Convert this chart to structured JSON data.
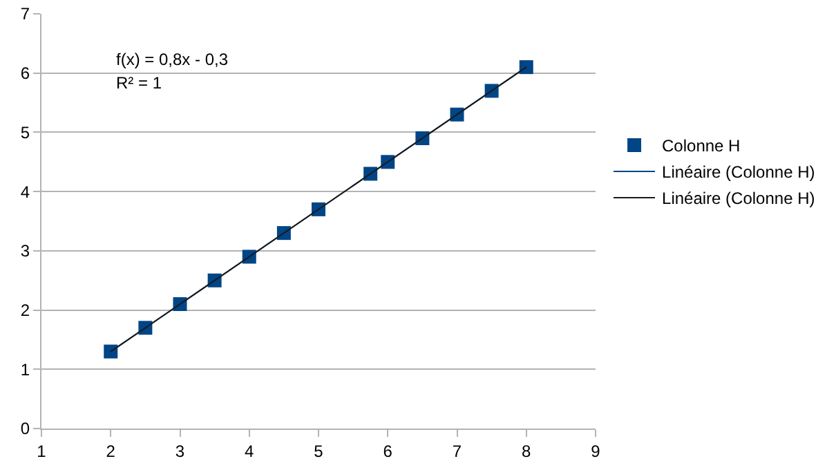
{
  "chart_data": {
    "type": "scatter",
    "xlim": [
      1,
      9
    ],
    "ylim": [
      0,
      7
    ],
    "xticks": [
      1,
      2,
      3,
      4,
      5,
      6,
      7,
      8,
      9
    ],
    "yticks": [
      0,
      1,
      2,
      3,
      4,
      5,
      6,
      7
    ],
    "grid": "y",
    "legend": "right",
    "annotations": [
      "f(x) = 0,8x - 0,3",
      "R² = 1"
    ],
    "series": [
      {
        "name": "Colonne H",
        "marker": "square",
        "color": "#004586",
        "x": [
          2,
          2.5,
          3,
          3.5,
          4,
          4.5,
          5,
          5.75,
          6,
          6.5,
          7,
          7.5,
          8
        ],
        "values": [
          1.3,
          1.7,
          2.1,
          2.5,
          2.9,
          3.3,
          3.7,
          4.3,
          4.5,
          4.9,
          5.3,
          5.7,
          6.1
        ]
      },
      {
        "name": "Linéaire (Colonne H)",
        "type": "line",
        "marker": "none",
        "color": "#004586",
        "x": [
          2,
          8
        ],
        "values": [
          1.3,
          6.1
        ]
      },
      {
        "name": "Linéaire (Colonne H)",
        "type": "line",
        "marker": "none",
        "color": "#1a1a1a",
        "x": [
          2,
          8
        ],
        "values": [
          1.3,
          6.1
        ]
      }
    ]
  }
}
